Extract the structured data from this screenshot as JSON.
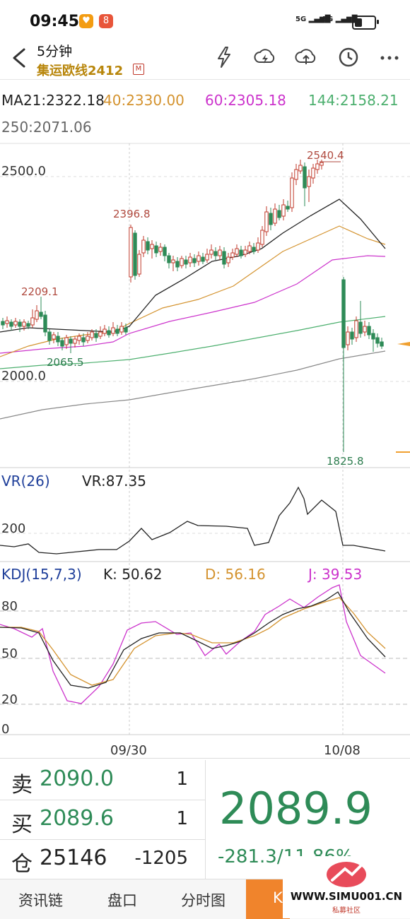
{
  "status_bar": {
    "time": "09:45",
    "signal1": "5G",
    "signal2": "5G"
  },
  "header": {
    "title": "5分钟",
    "subtitle": "集运欧线2412",
    "badge": "M"
  },
  "ma_legend": {
    "ma21": "MA21:2322.18",
    "ma40": "40:2330.00",
    "ma60": "60:2305.18",
    "ma144": "144:2158.21",
    "ma250": "250:2071.06",
    "colors": {
      "ma21": "#222222",
      "ma40": "#d4932f",
      "ma60": "#cc33cc",
      "ma144": "#4caf6e",
      "ma250": "#777777"
    }
  },
  "main_chart": {
    "price_ticks": [
      "2500.0",
      "2000.0"
    ],
    "annotations": [
      "2540.4",
      "2396.8",
      "2209.1",
      "2065.5",
      "1825.8"
    ]
  },
  "vr_panel": {
    "name": "VR(26)",
    "value": "VR:87.35",
    "tick": "200"
  },
  "kdj_panel": {
    "name": "KDJ(15,7,3)",
    "k": "K: 50.62",
    "d": "D: 56.16",
    "j": "J: 39.53",
    "ticks": [
      "80",
      "50",
      "20",
      "0"
    ]
  },
  "x_axis": {
    "labels": [
      "09/30",
      "10/08"
    ]
  },
  "quote": {
    "sell_label": "卖",
    "sell_price": "2090.0",
    "sell_qty": "1",
    "buy_label": "买",
    "buy_price": "2089.6",
    "buy_qty": "1",
    "oi_label": "仓",
    "oi_value": "25146",
    "oi_change": "-1205",
    "last_price": "2089.9",
    "change": "-281.3/11.86%"
  },
  "tabs": [
    "资讯链",
    "盘口",
    "分时图",
    "K"
  ],
  "watermark": {
    "text": "WWW.SIMU001.CN",
    "sub": "私募社区"
  }
}
